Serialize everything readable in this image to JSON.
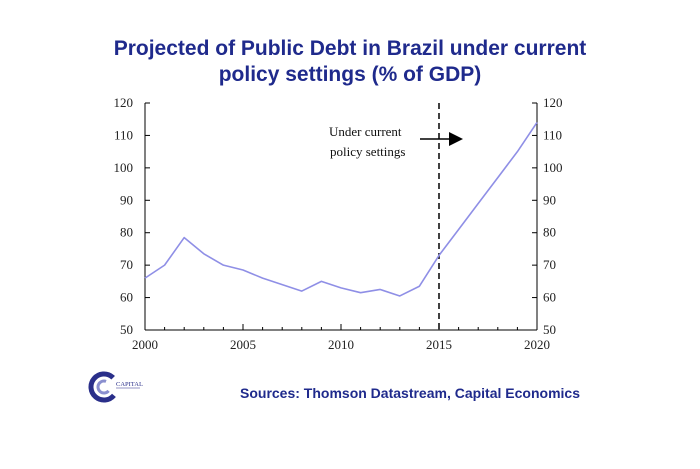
{
  "title": {
    "line1": "Projected of Public Debt in Brazil under current",
    "line2": "policy settings (% of GDP)"
  },
  "sources": "Sources: Thomson Datastream, Capital Economics",
  "logo": {
    "text": "CAPITAL",
    "icon": "capital-economics-logo-icon"
  },
  "colors": {
    "title": "#1f2a8c",
    "series": "#8f8fe6",
    "axis": "#000000"
  },
  "chart_data": {
    "type": "line",
    "x": [
      2000,
      2001,
      2002,
      2003,
      2004,
      2005,
      2006,
      2007,
      2008,
      2009,
      2010,
      2011,
      2012,
      2013,
      2014,
      2015,
      2016,
      2017,
      2018,
      2019,
      2020
    ],
    "series": [
      {
        "values": [
          66,
          70,
          78.5,
          73.5,
          70,
          68.5,
          66,
          64,
          62,
          65,
          63,
          61.5,
          62.5,
          60.5,
          63.5,
          73,
          81,
          89,
          97,
          105,
          114
        ]
      }
    ],
    "xlim": [
      2000,
      2020
    ],
    "ylim": [
      50,
      120
    ],
    "xticks": [
      "2000",
      "2005",
      "2010",
      "2015",
      "2020"
    ],
    "yticks": [
      "50",
      "60",
      "70",
      "80",
      "90",
      "100",
      "110",
      "120"
    ],
    "right_axis": true,
    "grid": false,
    "vline": {
      "x": 2015,
      "style": "dashed"
    },
    "annotation": {
      "line1": "Under current",
      "line2": "policy settings",
      "arrow": "right"
    }
  }
}
